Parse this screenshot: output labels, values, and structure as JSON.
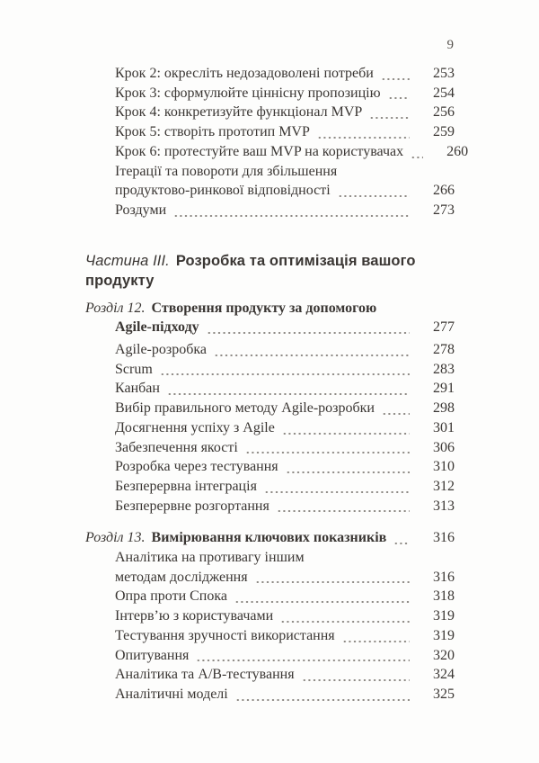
{
  "page": {
    "number": "9"
  },
  "colors": {
    "text": "#3a3633",
    "dot_leader": "#8d8984",
    "header_page_number": "#56524d"
  },
  "toc": {
    "leading_entries": [
      {
        "label": "Крок 2: окресліть недозадоволені потреби",
        "page": "253"
      },
      {
        "label": "Крок 3: сформулюйте ціннісну пропозицію",
        "page": "254"
      },
      {
        "label": "Крок 4: конкретизуйте функціонал MVP",
        "page": "256"
      },
      {
        "label": "Крок 5: створіть прототип MVP",
        "page": "259"
      },
      {
        "label": "Крок 6: протестуйте ваш MVP на користувачах",
        "page": "260"
      }
    ],
    "iteration_entry": {
      "line1": "Ітерації та повороти для збільшення",
      "line2": "продуктово-ринкової відповідності",
      "page": "266"
    },
    "thoughts_entry": {
      "label": "Роздуми",
      "page": "273"
    },
    "part": {
      "prefix": "Частина III.",
      "title": "Розробка та оптимізація вашого продукту"
    },
    "chapter12": {
      "prefix": "Розділ 12.",
      "title_line1": "Створення продукту за допомогою",
      "title_line2": "Agile-підходу",
      "page": "277",
      "entries": [
        {
          "label": "Agile-розробка",
          "page": "278"
        },
        {
          "label": "Scrum",
          "page": "283"
        },
        {
          "label": "Канбан",
          "page": "291"
        },
        {
          "label": "Вибір правильного методу Agile-розробки",
          "page": "298"
        },
        {
          "label": "Досягнення успіху з Agile",
          "page": "301"
        },
        {
          "label": "Забезпечення якості",
          "page": "306"
        },
        {
          "label": "Розробка через тестування",
          "page": "310"
        },
        {
          "label": "Безперервна інтеграція",
          "page": "312"
        },
        {
          "label": "Безперервне розгортання",
          "page": "313"
        }
      ]
    },
    "chapter13": {
      "prefix": "Розділ 13.",
      "title": "Вимірювання ключових показників",
      "page": "316",
      "analytics_entry": {
        "line1": "Аналітика на противагу іншим",
        "line2": "методам дослідження",
        "page": "316"
      },
      "entries": [
        {
          "label": "Опра проти Спока",
          "page": "318"
        },
        {
          "label": "Інтерв’ю з користувачами",
          "page": "319"
        },
        {
          "label": "Тестування зручності використання",
          "page": "319"
        },
        {
          "label": "Опитування",
          "page": "320"
        },
        {
          "label": "Аналітика та A/B-тестування",
          "page": "324"
        },
        {
          "label": "Аналітичні моделі",
          "page": "325"
        }
      ]
    }
  }
}
